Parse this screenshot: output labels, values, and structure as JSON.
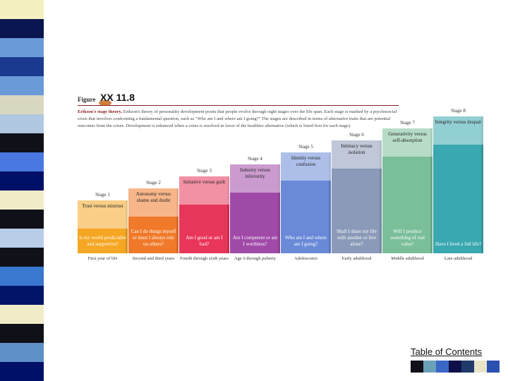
{
  "left_strip_colors": [
    "#f4f0c0",
    "#0a1650",
    "#6a9ad8",
    "#1a3a90",
    "#6a9ad8",
    "#d8d8c0",
    "#b0c8e0",
    "#101018",
    "#4878e0",
    "#001068",
    "#f0ecc8",
    "#101018",
    "#b8cde8",
    "#101018",
    "#3a78d0",
    "#001468",
    "#f0ecc8",
    "#101018",
    "#6090c8",
    "#001068"
  ],
  "figure": {
    "xx": "XX 11.8",
    "label": "Figure",
    "caption_lead": "Erikson's stage theory.",
    "caption_rest": "Erikson's theory of personality development posits that people evolve through eight stages over the life span. Each stage is marked by a psychosocial crisis that involves confronting a fundamental question, such as \"Who am I and where am I going?\" The stages are described in terms of alternative traits that are potential outcomes from the crises. Development is enhanced when a crisis is resolved in favor of the healthier alternative (which is listed first for each stage).",
    "stages": [
      {
        "title": "Stage 1",
        "trait": "Trust versus mistrust",
        "question": "Is my world predictable and supportive?",
        "age": "First year of life",
        "color": "#f5a623"
      },
      {
        "title": "Stage 2",
        "trait": "Autonomy versus shame and doubt",
        "question": "Can I do things myself or must I always rely on others?",
        "age": "Second and third years",
        "color": "#f07a2a"
      },
      {
        "title": "Stage 3",
        "trait": "Initiative versus guilt",
        "question": "Am I good or am I bad?",
        "age": "Fourth through sixth years",
        "color": "#e8365a"
      },
      {
        "title": "Stage 4",
        "trait": "Industry versus inferiority",
        "question": "Am I competent or am I worthless?",
        "age": "Age 6 through puberty",
        "color": "#a04aa8"
      },
      {
        "title": "Stage 5",
        "trait": "Identity versus confusion",
        "question": "Who am I and where am I going?",
        "age": "Adolescence",
        "color": "#6a8ad8"
      },
      {
        "title": "Stage 6",
        "trait": "Intimacy versus isolation",
        "question": "Shall I share my life with another or live alone?",
        "age": "Early adulthood",
        "color": "#8a9ab8"
      },
      {
        "title": "Stage 7",
        "trait": "Generativity versus self-absorption",
        "question": "Will I produce something of real value?",
        "age": "Middle adulthood",
        "color": "#7abf9a"
      },
      {
        "title": "Stage 8",
        "trait": "Integrity versus despair",
        "question": "Have I lived a full life?",
        "age": "Late adulthood",
        "color": "#3aa8b0"
      }
    ]
  },
  "footer": {
    "toc_label": "Table of Contents",
    "palette": [
      "#101018",
      "#6aa0b8",
      "#3a66c8",
      "#101048",
      "#203a6a",
      "#e8e4c8",
      "#2a50b0"
    ]
  }
}
